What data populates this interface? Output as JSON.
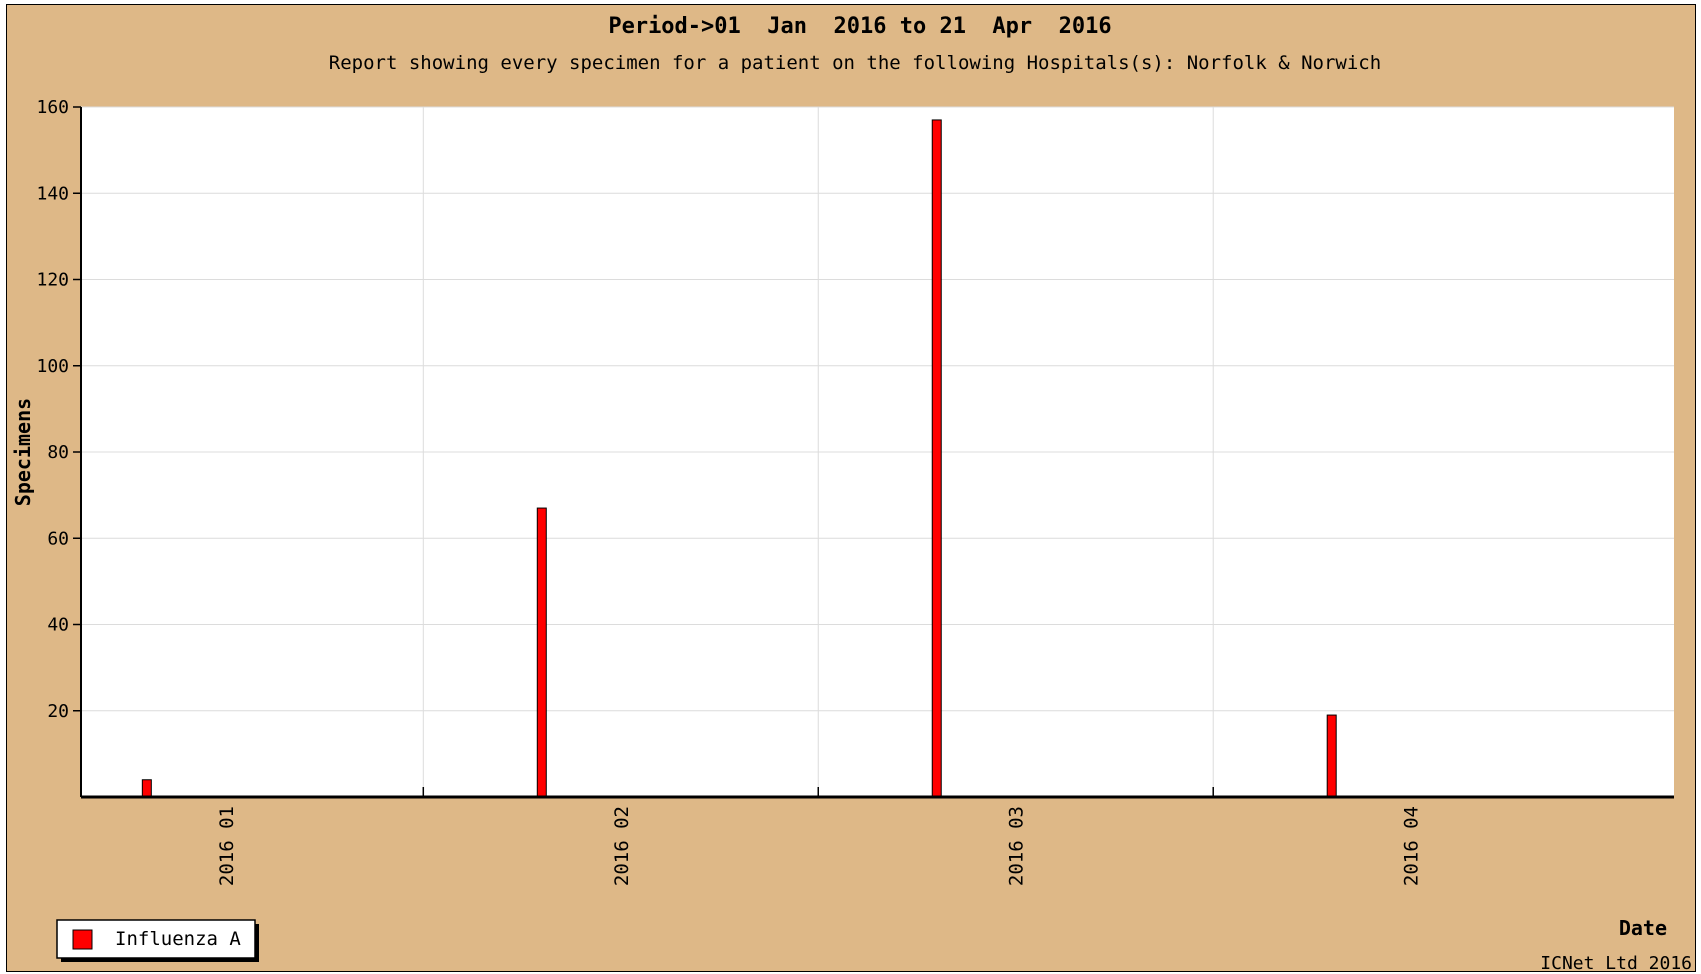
{
  "chart_data": {
    "type": "bar",
    "title": "Period->01  Jan  2016 to 21  Apr  2016",
    "subtitle": "Report showing every specimen for a patient on the following Hospitals(s): Norfolk & Norwich",
    "xlabel": "Date",
    "ylabel": "Specimens",
    "ylim": [
      0,
      160
    ],
    "yticks": [
      20,
      40,
      60,
      80,
      100,
      120,
      140,
      160
    ],
    "xlim": [
      "2015-12-24",
      "2016-04-23"
    ],
    "month_ticks": [
      {
        "label": "2016 01",
        "date": "2016-01-04"
      },
      {
        "label": "2016 02",
        "date": "2016-02-03"
      },
      {
        "label": "2016 03",
        "date": "2016-03-04"
      },
      {
        "label": "2016 04",
        "date": "2016-04-03"
      }
    ],
    "grid": true,
    "legend_position": "bottom-left",
    "series": [
      {
        "name": "Influenza A",
        "color": "#FF0000",
        "points": [
          {
            "date": "2015-12-29",
            "value": 4
          },
          {
            "date": "2016-01-28",
            "value": 67
          },
          {
            "date": "2016-02-27",
            "value": 157
          },
          {
            "date": "2016-03-28",
            "value": 19
          }
        ]
      }
    ],
    "credit": "ICNet Ltd 2016"
  }
}
